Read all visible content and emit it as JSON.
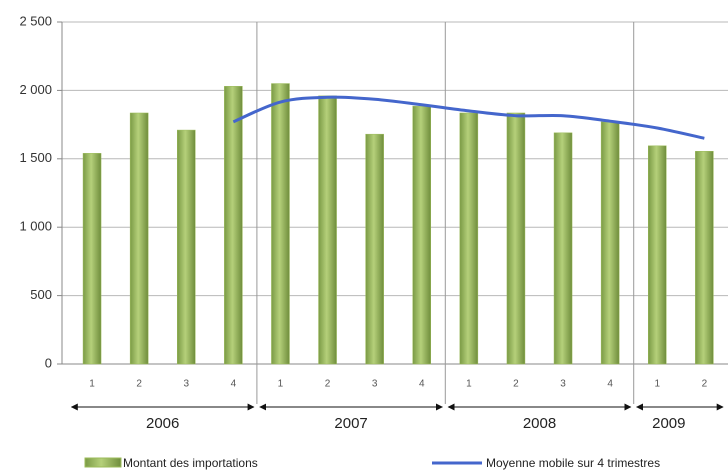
{
  "chart_data": {
    "type": "bar-line",
    "categories": [
      "1",
      "2",
      "3",
      "4",
      "1",
      "2",
      "3",
      "4",
      "1",
      "2",
      "3",
      "4",
      "1",
      "2"
    ],
    "years": [
      "2006",
      "2007",
      "2008",
      "2009"
    ],
    "series": [
      {
        "name": "Montant des importations",
        "type": "bar",
        "color": "#9bbb59",
        "values": [
          1540,
          1835,
          1710,
          2030,
          2050,
          1960,
          1680,
          1885,
          1835,
          1835,
          1690,
          1770,
          1595,
          1555
        ]
      },
      {
        "name": "Moyenne mobile sur 4 trimestres",
        "type": "line",
        "color": "#4466cc",
        "values": [
          null,
          null,
          null,
          1770,
          1915,
          1950,
          1935,
          1895,
          1850,
          1815,
          1815,
          1775,
          1725,
          1650
        ]
      }
    ],
    "ylim": [
      0,
      2500
    ],
    "yticks": [
      0,
      500,
      {
        "value": 1000,
        "label": "1 000"
      },
      {
        "value": 1500,
        "label": "1 500"
      },
      {
        "value": 2000,
        "label": "2 000"
      },
      {
        "value": 2500,
        "label": "2 500"
      }
    ],
    "grid": true
  }
}
